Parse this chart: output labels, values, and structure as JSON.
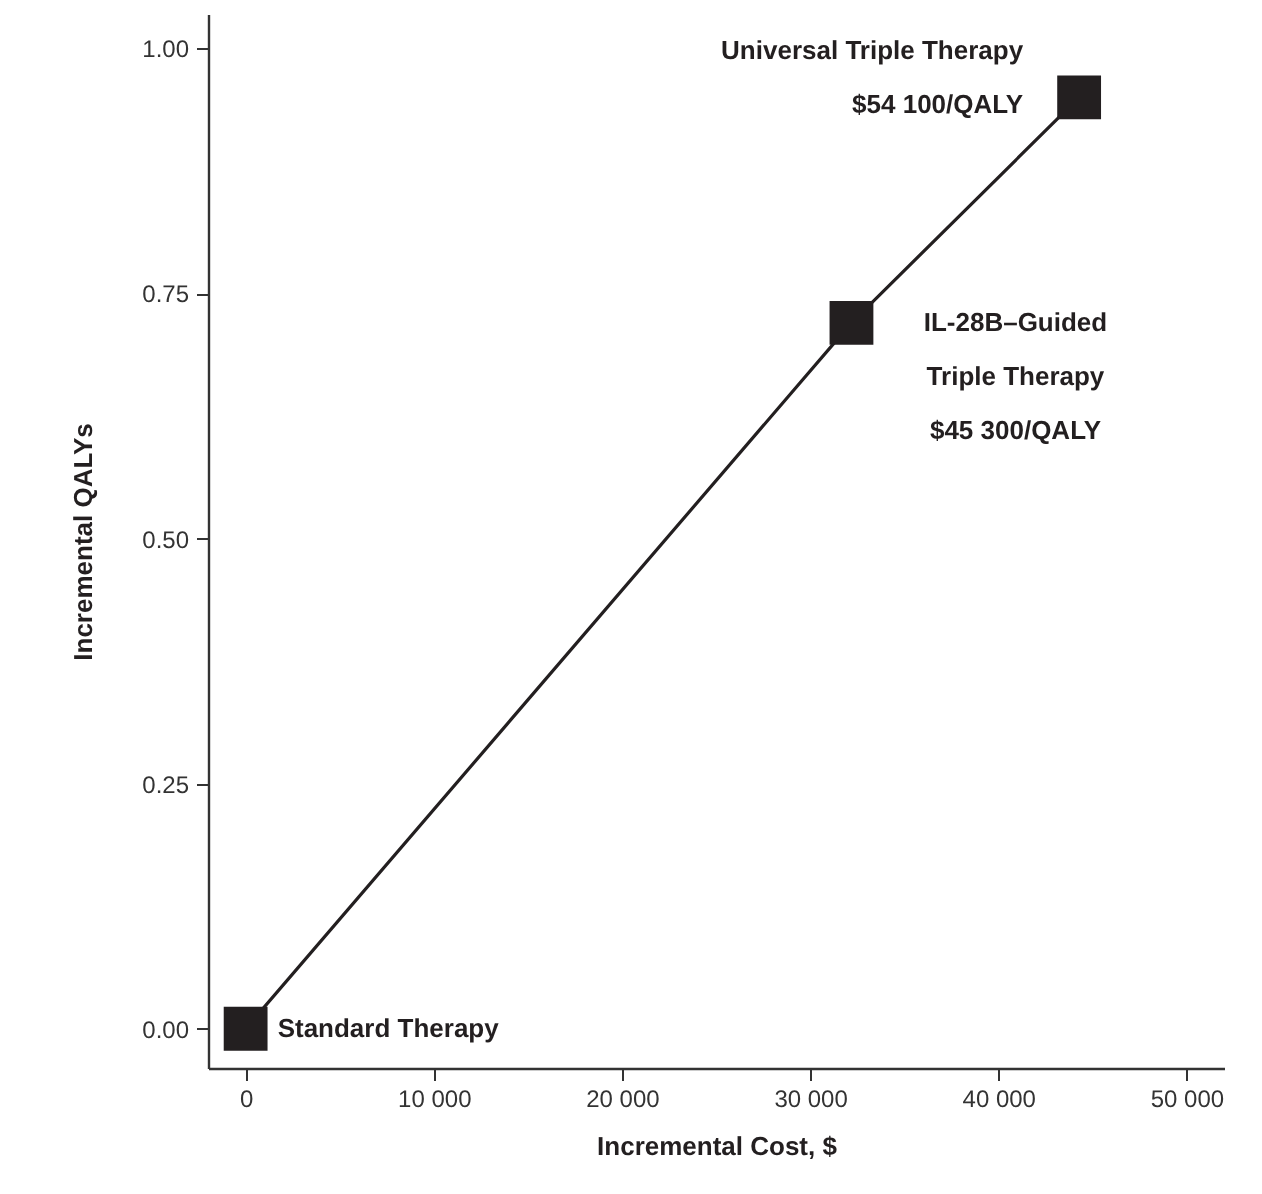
{
  "chart_data": {
    "type": "line",
    "xlabel": "Incremental Cost, $",
    "ylabel": "Incremental QALYs",
    "x": [
      0,
      32200,
      44300
    ],
    "series": [
      {
        "color": "#231f20",
        "values": [
          0,
          0.72,
          0.95
        ]
      }
    ],
    "marker": "square",
    "line_style": "solid",
    "grid": false,
    "xlim": [
      -2000,
      52000
    ],
    "ylim": [
      -0.04,
      1.035
    ],
    "xticks": [
      0,
      {
        "value": 10000,
        "label": "10 000"
      },
      {
        "value": 20000,
        "label": "20 000"
      },
      {
        "value": 30000,
        "label": "30 000"
      },
      {
        "value": 40000,
        "label": "40 000"
      },
      {
        "value": 50000,
        "label": "50 000"
      }
    ],
    "yticks": [
      {
        "value": 0,
        "label": "0.00"
      },
      {
        "value": 0.25,
        "label": "0.25"
      },
      {
        "value": 0.5,
        "label": "0.50"
      },
      {
        "value": 0.75,
        "label": "0.75"
      },
      {
        "value": 1,
        "label": "1.00"
      }
    ],
    "annotations": [
      {
        "text": "Standard Therapy",
        "x": 0,
        "y": 0
      },
      {
        "text": "IL-28B–Guided\nTriple Therapy\n$45 300/QALY",
        "x": 32200,
        "y": 0.72
      },
      {
        "text": "Universal Triple Therapy\n$54 100/QALY",
        "x": 44300,
        "y": 0.95
      }
    ]
  }
}
